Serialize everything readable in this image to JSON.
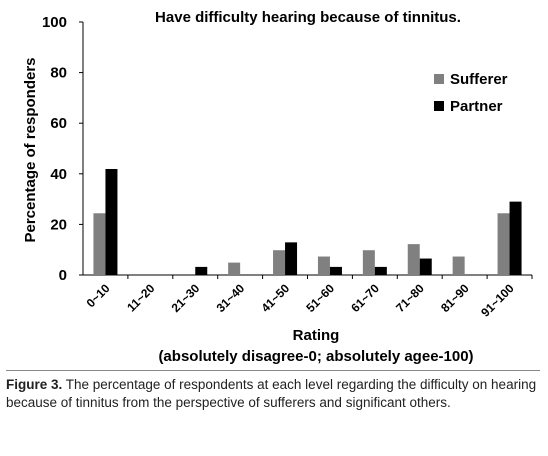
{
  "chart_data": {
    "type": "bar",
    "title": "Have difficulty hearing because of tinnitus.",
    "xlabel": "Rating",
    "xlabel_sub": "(absolutely disagree-0; absolutely agee-100)",
    "ylabel": "Percentage of responders",
    "ylim": [
      0,
      100
    ],
    "yticks": [
      0,
      20,
      40,
      60,
      80,
      100
    ],
    "grid": false,
    "legend_position": "right",
    "categories": [
      "0~10",
      "11~20",
      "21~30",
      "31~40",
      "41~50",
      "51~60",
      "61~70",
      "71~80",
      "81~90",
      "91~100"
    ],
    "series": [
      {
        "name": "Sufferer",
        "color": "#808080",
        "values": [
          24.4,
          0,
          0,
          4.9,
          9.8,
          7.3,
          9.8,
          12.2,
          7.3,
          24.4
        ]
      },
      {
        "name": "Partner",
        "color": "#000000",
        "values": [
          41.9,
          0,
          3.2,
          0,
          12.9,
          3.2,
          3.2,
          6.5,
          0,
          29.0
        ]
      }
    ]
  },
  "caption": {
    "label": "Figure 3.",
    "text": " The percentage of respondents at each level regarding the difficulty on hearing because of tinnitus from the perspective of sufferers and significant others."
  }
}
